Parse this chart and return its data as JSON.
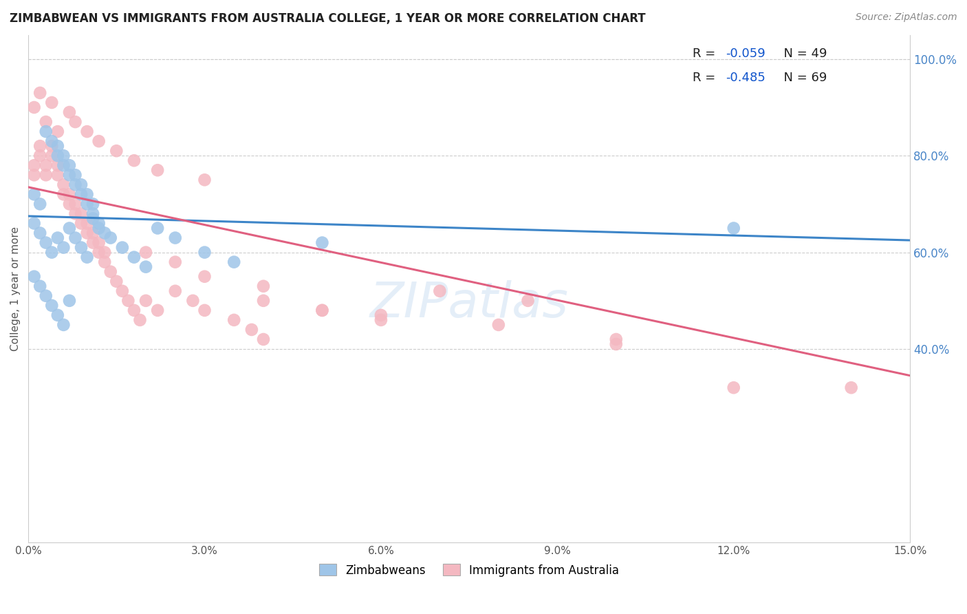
{
  "title": "ZIMBABWEAN VS IMMIGRANTS FROM AUSTRALIA COLLEGE, 1 YEAR OR MORE CORRELATION CHART",
  "source": "Source: ZipAtlas.com",
  "ylabel_left": "College, 1 year or more",
  "xmin": 0.0,
  "xmax": 0.15,
  "ymin": 0.0,
  "ymax": 1.05,
  "blue_R": -0.059,
  "blue_N": 49,
  "pink_R": -0.485,
  "pink_N": 69,
  "blue_color": "#9fc5e8",
  "pink_color": "#f4b8c1",
  "blue_line_color": "#3d85c8",
  "pink_line_color": "#e06080",
  "legend_R_color": "#1155cc",
  "watermark": "ZIPatlas",
  "blue_scatter_x": [
    0.001,
    0.002,
    0.003,
    0.004,
    0.005,
    0.005,
    0.006,
    0.006,
    0.007,
    0.007,
    0.008,
    0.008,
    0.009,
    0.009,
    0.01,
    0.01,
    0.011,
    0.011,
    0.012,
    0.013,
    0.001,
    0.002,
    0.003,
    0.004,
    0.005,
    0.006,
    0.007,
    0.008,
    0.009,
    0.01,
    0.011,
    0.012,
    0.014,
    0.016,
    0.018,
    0.02,
    0.022,
    0.025,
    0.03,
    0.035,
    0.001,
    0.002,
    0.003,
    0.004,
    0.005,
    0.006,
    0.007,
    0.05,
    0.12
  ],
  "blue_scatter_y": [
    0.72,
    0.7,
    0.85,
    0.83,
    0.8,
    0.82,
    0.78,
    0.8,
    0.76,
    0.78,
    0.74,
    0.76,
    0.72,
    0.74,
    0.7,
    0.72,
    0.68,
    0.7,
    0.66,
    0.64,
    0.66,
    0.64,
    0.62,
    0.6,
    0.63,
    0.61,
    0.65,
    0.63,
    0.61,
    0.59,
    0.67,
    0.65,
    0.63,
    0.61,
    0.59,
    0.57,
    0.65,
    0.63,
    0.6,
    0.58,
    0.55,
    0.53,
    0.51,
    0.49,
    0.47,
    0.45,
    0.5,
    0.62,
    0.65
  ],
  "pink_scatter_x": [
    0.001,
    0.001,
    0.002,
    0.002,
    0.003,
    0.003,
    0.004,
    0.004,
    0.005,
    0.005,
    0.006,
    0.006,
    0.007,
    0.007,
    0.008,
    0.008,
    0.009,
    0.009,
    0.01,
    0.01,
    0.011,
    0.011,
    0.012,
    0.012,
    0.013,
    0.013,
    0.014,
    0.015,
    0.016,
    0.017,
    0.018,
    0.019,
    0.02,
    0.022,
    0.025,
    0.028,
    0.03,
    0.035,
    0.038,
    0.04,
    0.001,
    0.002,
    0.003,
    0.004,
    0.005,
    0.007,
    0.008,
    0.01,
    0.012,
    0.015,
    0.018,
    0.022,
    0.03,
    0.04,
    0.05,
    0.06,
    0.07,
    0.085,
    0.1,
    0.12,
    0.02,
    0.025,
    0.03,
    0.04,
    0.05,
    0.06,
    0.08,
    0.1,
    0.14
  ],
  "pink_scatter_y": [
    0.76,
    0.78,
    0.8,
    0.82,
    0.76,
    0.78,
    0.8,
    0.82,
    0.76,
    0.78,
    0.72,
    0.74,
    0.7,
    0.72,
    0.68,
    0.7,
    0.66,
    0.68,
    0.64,
    0.66,
    0.62,
    0.64,
    0.6,
    0.62,
    0.58,
    0.6,
    0.56,
    0.54,
    0.52,
    0.5,
    0.48,
    0.46,
    0.5,
    0.48,
    0.52,
    0.5,
    0.48,
    0.46,
    0.44,
    0.42,
    0.9,
    0.93,
    0.87,
    0.91,
    0.85,
    0.89,
    0.87,
    0.85,
    0.83,
    0.81,
    0.79,
    0.77,
    0.75,
    0.5,
    0.48,
    0.46,
    0.52,
    0.5,
    0.42,
    0.32,
    0.6,
    0.58,
    0.55,
    0.53,
    0.48,
    0.47,
    0.45,
    0.41,
    0.32
  ],
  "blue_line_x": [
    0.0,
    0.15
  ],
  "blue_line_y": [
    0.675,
    0.625
  ],
  "pink_line_x": [
    0.0,
    0.15
  ],
  "pink_line_y": [
    0.735,
    0.345
  ]
}
